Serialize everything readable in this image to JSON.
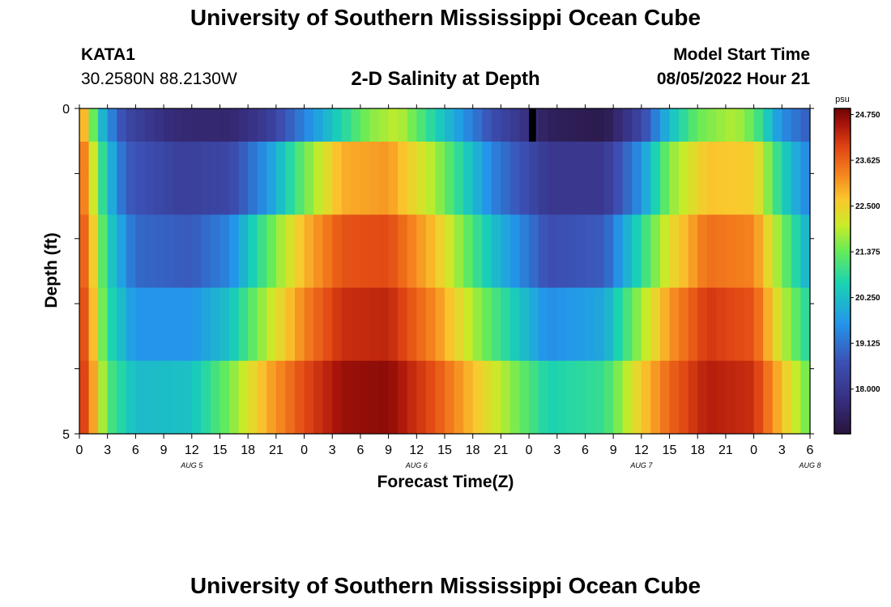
{
  "header": {
    "main_title": "University of Southern Mississippi Ocean Cube",
    "station_id": "KATA1",
    "coords": "30.2580N  88.2130W",
    "chart_title": "2-D Salinity at Depth",
    "model_label": "Model Start Time",
    "model_time": "08/05/2022 Hour 21"
  },
  "footer": {
    "main_title": "University of Southern Mississippi Ocean Cube"
  },
  "chart_data": {
    "type": "heatmap",
    "title": "2-D Salinity at Depth",
    "xlabel": "Forecast Time(Z)",
    "ylabel": "Depth (ft)",
    "y_ticks": [
      "0",
      "5"
    ],
    "y_range": [
      0,
      5
    ],
    "x_tick_labels": [
      "0",
      "3",
      "6",
      "9",
      "12",
      "15",
      "18",
      "21",
      "0",
      "3",
      "6",
      "9",
      "12",
      "15",
      "18",
      "21",
      "0",
      "3",
      "6",
      "9",
      "12",
      "15",
      "18",
      "21",
      "0",
      "3",
      "6"
    ],
    "day_labels": [
      {
        "label": "AUG 5",
        "hour_index": 12
      },
      {
        "label": "AUG 6",
        "hour_index": 36
      },
      {
        "label": "AUG 7",
        "hour_index": 60
      },
      {
        "label": "AUG 8",
        "hour_index": 78
      }
    ],
    "hours_total": 78,
    "colorbar": {
      "unit": "psu",
      "min": 16.9,
      "max": 24.9,
      "tick_values": [
        "24.750",
        "23.625",
        "22.500",
        "21.375",
        "20.250",
        "19.125",
        "18.000"
      ]
    },
    "rows": [
      {
        "depth_band": "0-1 ft",
        "keys": [
          [
            0,
            23.4
          ],
          [
            1,
            22.2
          ],
          [
            2,
            20.6
          ],
          [
            3,
            19.6
          ],
          [
            5,
            18.4
          ],
          [
            10,
            17.6
          ],
          [
            16,
            17.5
          ],
          [
            20,
            18.1
          ],
          [
            26,
            20.0
          ],
          [
            31,
            21.6
          ],
          [
            34,
            22.0
          ],
          [
            38,
            20.6
          ],
          [
            44,
            18.6
          ],
          [
            50,
            17.3
          ],
          [
            56,
            17.1
          ],
          [
            60,
            18.4
          ],
          [
            63,
            20.2
          ],
          [
            66,
            21.4
          ],
          [
            70,
            21.9
          ],
          [
            72,
            21.3
          ],
          [
            75,
            19.5
          ],
          [
            78,
            18.8
          ]
        ]
      },
      {
        "depth_band": "1-2 ft",
        "keys": [
          [
            0,
            23.8
          ],
          [
            1,
            22.8
          ],
          [
            2,
            21.4
          ],
          [
            3,
            20.3
          ],
          [
            5,
            18.8
          ],
          [
            11,
            18.2
          ],
          [
            16,
            18.4
          ],
          [
            20,
            19.6
          ],
          [
            24,
            21.4
          ],
          [
            28,
            22.9
          ],
          [
            33,
            23.1
          ],
          [
            38,
            21.8
          ],
          [
            44,
            19.4
          ],
          [
            50,
            18.0
          ],
          [
            56,
            18.0
          ],
          [
            60,
            19.6
          ],
          [
            63,
            21.6
          ],
          [
            67,
            22.7
          ],
          [
            72,
            22.6
          ],
          [
            75,
            20.6
          ],
          [
            78,
            19.3
          ]
        ]
      },
      {
        "depth_band": "2-3 ft",
        "keys": [
          [
            0,
            24.0
          ],
          [
            1,
            23.2
          ],
          [
            2,
            21.9
          ],
          [
            3,
            20.6
          ],
          [
            6,
            19.0
          ],
          [
            12,
            18.8
          ],
          [
            16,
            19.4
          ],
          [
            20,
            21.2
          ],
          [
            24,
            22.8
          ],
          [
            28,
            23.8
          ],
          [
            33,
            23.9
          ],
          [
            38,
            22.7
          ],
          [
            44,
            20.3
          ],
          [
            50,
            18.6
          ],
          [
            56,
            18.8
          ],
          [
            60,
            20.8
          ],
          [
            63,
            22.3
          ],
          [
            67,
            23.5
          ],
          [
            72,
            23.3
          ],
          [
            75,
            21.5
          ],
          [
            78,
            19.9
          ]
        ]
      },
      {
        "depth_band": "3-4 ft",
        "keys": [
          [
            0,
            24.2
          ],
          [
            1,
            23.4
          ],
          [
            2,
            22.1
          ],
          [
            3,
            20.8
          ],
          [
            6,
            19.6
          ],
          [
            12,
            19.6
          ],
          [
            16,
            20.3
          ],
          [
            20,
            21.9
          ],
          [
            24,
            23.3
          ],
          [
            28,
            24.2
          ],
          [
            33,
            24.3
          ],
          [
            38,
            23.2
          ],
          [
            44,
            21.2
          ],
          [
            50,
            19.5
          ],
          [
            56,
            19.9
          ],
          [
            60,
            21.8
          ],
          [
            63,
            23.1
          ],
          [
            67,
            24.1
          ],
          [
            72,
            23.8
          ],
          [
            75,
            22.0
          ],
          [
            78,
            20.6
          ]
        ]
      },
      {
        "depth_band": "4-5 ft",
        "keys": [
          [
            0,
            24.3
          ],
          [
            1,
            23.6
          ],
          [
            2,
            22.4
          ],
          [
            3,
            21.2
          ],
          [
            6,
            20.2
          ],
          [
            12,
            20.3
          ],
          [
            16,
            21.5
          ],
          [
            20,
            22.9
          ],
          [
            24,
            23.9
          ],
          [
            28,
            24.6
          ],
          [
            33,
            24.7
          ],
          [
            38,
            23.8
          ],
          [
            44,
            22.2
          ],
          [
            50,
            20.6
          ],
          [
            56,
            20.9
          ],
          [
            60,
            22.6
          ],
          [
            63,
            23.6
          ],
          [
            67,
            24.4
          ],
          [
            72,
            24.2
          ],
          [
            75,
            22.7
          ],
          [
            78,
            21.3
          ]
        ]
      }
    ],
    "missing_marker": {
      "hour_index": 48,
      "depth_band": "0-1 ft",
      "color": "#000000"
    }
  }
}
